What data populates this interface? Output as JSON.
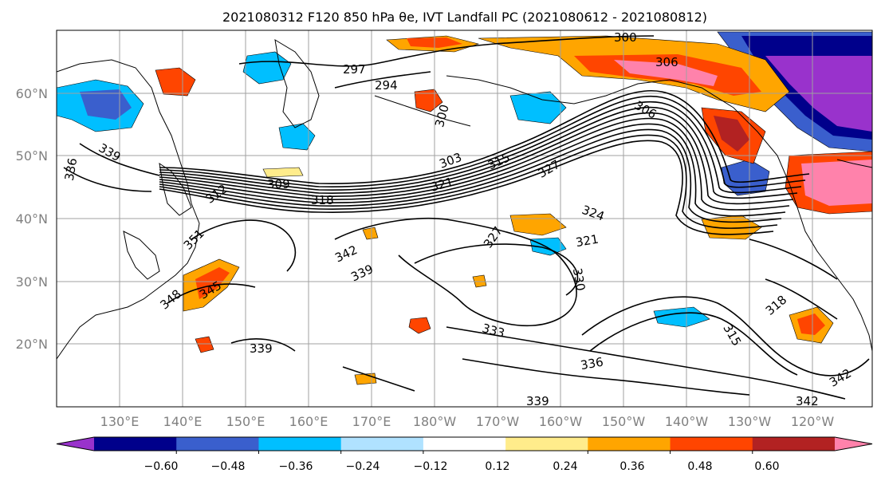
{
  "title": "2021080312 F120 850 hPa θe, IVT Landfall PC (2021080612 - 2021080812)",
  "latitude_labels": [
    "60°N",
    "50°N",
    "40°N",
    "30°N",
    "20°N"
  ],
  "longitude_labels": [
    "130°E",
    "140°E",
    "150°E",
    "160°E",
    "170°E",
    "180°W",
    "170°W",
    "160°W",
    "150°W",
    "140°W",
    "130°W",
    "120°W"
  ],
  "colorbar": {
    "tick_labels": [
      "−0.60",
      "−0.48",
      "−0.36",
      "−0.24",
      "−0.12",
      "0.12",
      "0.24",
      "0.36",
      "0.48",
      "0.60"
    ],
    "colors": [
      "#9932cc",
      "#00008b",
      "#3a5fcd",
      "#00bfff",
      "#b0e2ff",
      "#ffffff",
      "#ffec8b",
      "#ffa500",
      "#ff4500",
      "#b22222",
      "#ff82ab"
    ]
  },
  "contour_labels": [
    "300",
    "306",
    "297",
    "294",
    "300",
    "306",
    "303",
    "315",
    "321",
    "327",
    "309",
    "318",
    "339",
    "336",
    "312",
    "351",
    "324",
    "321",
    "327",
    "342",
    "339",
    "330",
    "348",
    "345",
    "333",
    "318",
    "315",
    "339",
    "336",
    "342",
    "339",
    "342"
  ]
}
